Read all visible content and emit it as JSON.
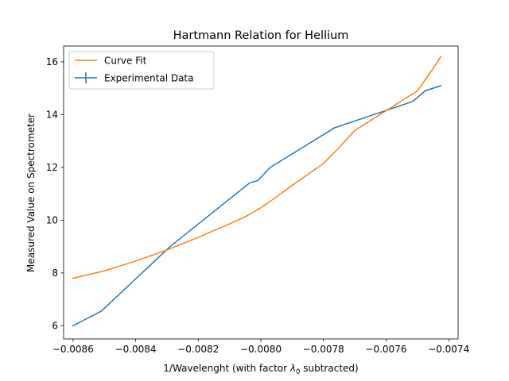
{
  "chart_data": {
    "type": "line",
    "title": "Hartmann Relation for Hellium",
    "xlabel_prefix": "1/Wavelenght (with factor ",
    "xlabel_symbol": "λ",
    "xlabel_subscript": "0",
    "xlabel_suffix": " subtracted)",
    "ylabel": "Measured Value on Spectrometer",
    "xlim": [
      -0.00863,
      -0.00737
    ],
    "ylim": [
      5.5,
      16.6
    ],
    "xticks": [
      -0.0086,
      -0.0084,
      -0.0082,
      -0.008,
      -0.0078,
      -0.0076,
      -0.0074
    ],
    "xtick_labels": [
      "−0.0086",
      "−0.0084",
      "−0.0082",
      "−0.0080",
      "−0.0078",
      "−0.0076",
      "−0.0074"
    ],
    "yticks": [
      6,
      8,
      10,
      12,
      14,
      16
    ],
    "ytick_labels": [
      "6",
      "8",
      "10",
      "12",
      "14",
      "16"
    ],
    "grid": false,
    "legend_position": "top-left",
    "series": [
      {
        "name": "Curve Fit",
        "color": "#ff7f0e",
        "kind": "line",
        "x": [
          -0.0086,
          -0.0085,
          -0.0084,
          -0.0083,
          -0.0082,
          -0.0081,
          -0.00805,
          -0.008,
          -0.00796,
          -0.0079,
          -0.0078,
          -0.00775,
          -0.0077,
          -0.0076,
          -0.0075,
          -0.00745,
          -0.007425
        ],
        "y": [
          7.8,
          8.08,
          8.45,
          8.87,
          9.35,
          9.86,
          10.13,
          10.47,
          10.8,
          11.32,
          12.15,
          12.75,
          13.4,
          14.15,
          14.9,
          15.75,
          16.2
        ]
      },
      {
        "name": "Experimental Data",
        "color": "#1f77b4",
        "kind": "errorbar",
        "x": [
          -0.0086,
          -0.00851,
          -0.00829,
          -0.008035,
          -0.00801,
          -0.00797,
          -0.007765,
          -0.007515,
          -0.007475,
          -0.007425
        ],
        "y": [
          6.0,
          6.55,
          9.0,
          11.42,
          11.5,
          12.0,
          13.5,
          14.5,
          14.9,
          15.1
        ]
      }
    ]
  }
}
